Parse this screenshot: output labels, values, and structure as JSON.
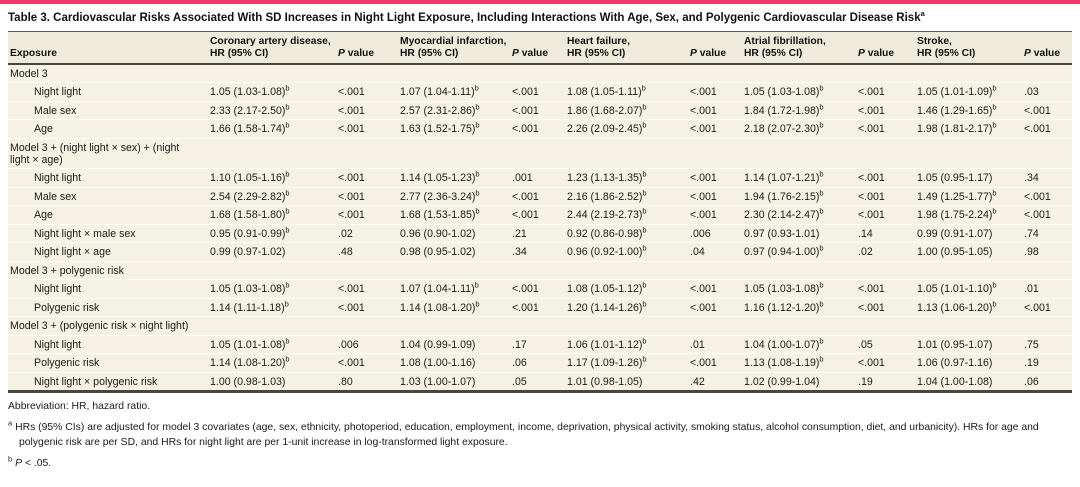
{
  "accent_color": "#EE3B6E",
  "table": {
    "title": "Table 3. Cardiovascular Risks Associated With SD Increases in Night Light Exposure, Including Interactions With Age, Sex, and Polygenic Cardiovascular Disease Risk",
    "title_footnote_marker": "a",
    "significance_marker": "b",
    "columns": [
      {
        "label": "Exposure"
      },
      {
        "line1": "Coronary artery disease,",
        "line2": "HR (95% CI)"
      },
      {
        "italic_lead": "P",
        "rest": "value"
      },
      {
        "line1": "Myocardial infarction,",
        "line2": "HR (95% CI)"
      },
      {
        "italic_lead": "P",
        "rest": "value"
      },
      {
        "line1": "Heart failure,",
        "line2": "HR (95% CI)"
      },
      {
        "italic_lead": "P",
        "rest": "value"
      },
      {
        "line1": "Atrial fibrillation,",
        "line2": "HR (95% CI)"
      },
      {
        "italic_lead": "P",
        "rest": "value"
      },
      {
        "line1": "Stroke,",
        "line2": "HR (95% CI)"
      },
      {
        "italic_lead": "P",
        "rest": "value"
      }
    ],
    "sections": [
      {
        "header": "Model 3",
        "rows": [
          {
            "label": "Night light",
            "values": [
              "1.05 (1.03-1.08)^b",
              "<.001",
              "1.07 (1.04-1.11)^b",
              "<.001",
              "1.08 (1.05-1.11)^b",
              "<.001",
              "1.05 (1.03-1.08)^b",
              "<.001",
              "1.05 (1.01-1.09)^b",
              ".03"
            ]
          },
          {
            "label": "Male sex",
            "values": [
              "2.33 (2.17-2.50)^b",
              "<.001",
              "2.57 (2.31-2.86)^b",
              "<.001",
              "1.86 (1.68-2.07)^b",
              "<.001",
              "1.84 (1.72-1.98)^b",
              "<.001",
              "1.46 (1.29-1.65)^b",
              "<.001"
            ]
          },
          {
            "label": "Age",
            "values": [
              "1.66 (1.58-1.74)^b",
              "<.001",
              "1.63 (1.52-1.75)^b",
              "<.001",
              "2.26 (2.09-2.45)^b",
              "<.001",
              "2.18 (2.07-2.30)^b",
              "<.001",
              "1.98 (1.81-2.17)^b",
              "<.001"
            ]
          }
        ]
      },
      {
        "header": "Model 3 + (night light × sex) + (night light × age)",
        "rows": [
          {
            "label": "Night light",
            "values": [
              "1.10 (1.05-1.16)^b",
              "<.001",
              "1.14 (1.05-1.23)^b",
              ".001",
              "1.23 (1.13-1.35)^b",
              "<.001",
              "1.14 (1.07-1.21)^b",
              "<.001",
              "1.05 (0.95-1.17)",
              ".34"
            ]
          },
          {
            "label": "Male sex",
            "values": [
              "2.54 (2.29-2.82)^b",
              "<.001",
              "2.77 (2.36-3.24)^b",
              "<.001",
              "2.16 (1.86-2.52)^b",
              "<.001",
              "1.94 (1.76-2.15)^b",
              "<.001",
              "1.49 (1.25-1.77)^b",
              "<.001"
            ]
          },
          {
            "label": "Age",
            "values": [
              "1.68 (1.58-1.80)^b",
              "<.001",
              "1.68 (1.53-1.85)^b",
              "<.001",
              "2.44 (2.19-2.73)^b",
              "<.001",
              "2.30 (2.14-2.47)^b",
              "<.001",
              "1.98 (1.75-2.24)^b",
              "<.001"
            ]
          },
          {
            "label": "Night light × male sex",
            "values": [
              "0.95 (0.91-0.99)^b",
              ".02",
              "0.96 (0.90-1.02)",
              ".21",
              "0.92 (0.86-0.98)^b",
              ".006",
              "0.97 (0.93-1.01)",
              ".14",
              "0.99 (0.91-1.07)",
              ".74"
            ]
          },
          {
            "label": "Night light × age",
            "values": [
              "0.99 (0.97-1.02)",
              ".48",
              "0.98 (0.95-1.02)",
              ".34",
              "0.96 (0.92-1.00)^b",
              ".04",
              "0.97 (0.94-1.00)^b",
              ".02",
              "1.00 (0.95-1.05)",
              ".98"
            ]
          }
        ]
      },
      {
        "header": "Model 3 + polygenic risk",
        "rows": [
          {
            "label": "Night light",
            "values": [
              "1.05 (1.03-1.08)^b",
              "<.001",
              "1.07 (1.04-1.11)^b",
              "<.001",
              "1.08 (1.05-1.12)^b",
              "<.001",
              "1.05 (1.03-1.08)^b",
              "<.001",
              "1.05 (1.01-1.10)^b",
              ".01"
            ]
          },
          {
            "label": "Polygenic risk",
            "values": [
              "1.14 (1.11-1.18)^b",
              "<.001",
              "1.14 (1.08-1.20)^b",
              "<.001",
              "1.20 (1.14-1.26)^b",
              "<.001",
              "1.16 (1.12-1.20)^b",
              "<.001",
              "1.13 (1.06-1.20)^b",
              "<.001"
            ]
          }
        ]
      },
      {
        "header": "Model 3 + (polygenic risk × night light)",
        "rows": [
          {
            "label": "Night light",
            "values": [
              "1.05 (1.01-1.08)^b",
              ".006",
              "1.04 (0.99-1.09)",
              ".17",
              "1.06 (1.01-1.12)^b",
              ".01",
              "1.04 (1.00-1.07)^b",
              ".05",
              "1.01 (0.95-1.07)",
              ".75"
            ]
          },
          {
            "label": "Polygenic risk",
            "values": [
              "1.14 (1.08-1.20)^b",
              "<.001",
              "1.08 (1.00-1.16)",
              ".06",
              "1.17 (1.09-1.26)^b",
              "<.001",
              "1.13 (1.08-1.19)^b",
              "<.001",
              "1.06 (0.97-1.16)",
              ".19"
            ]
          },
          {
            "label": "Night light × polygenic risk",
            "values": [
              "1.00 (0.98-1.03)",
              ".80",
              "1.03 (1.00-1.07)",
              ".05",
              "1.01 (0.98-1.05)",
              ".42",
              "1.02 (0.99-1.04)",
              ".19",
              "1.04 (1.00-1.08)",
              ".06"
            ]
          }
        ]
      }
    ]
  },
  "footnotes": {
    "abbreviation": "Abbreviation: HR, hazard ratio.",
    "a": {
      "marker": "a",
      "text": "HRs (95% CIs) are adjusted for model 3 covariates (age, sex, ethnicity, photoperiod, education, employment, income, deprivation, physical activity, smoking status, alcohol consumption, diet, and urbanicity). HRs for age and polygenic risk are per SD, and HRs for night light are per 1-unit increase in log-transformed light exposure."
    },
    "b": {
      "marker": "b",
      "italic_lead": "P",
      "rest": "< .05."
    }
  }
}
